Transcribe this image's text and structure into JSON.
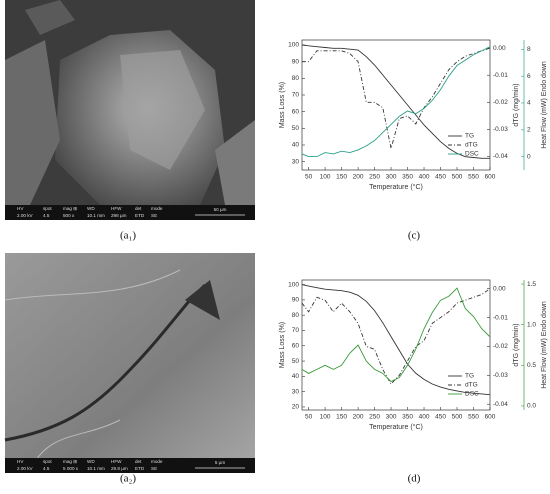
{
  "images": [
    {
      "label": "(a₁)",
      "info_headers": [
        "HV",
        "spot",
        "mag ⊞",
        "WD",
        "HFW",
        "det",
        "mode"
      ],
      "info_values": [
        "2.00 kV",
        "4.5",
        "500 x",
        "10.1 mm",
        "298 µm",
        "ETD",
        "SE"
      ],
      "scale": "50 µm"
    },
    {
      "label": "(a₂)",
      "info_headers": [
        "HV",
        "spot",
        "mag ⊞",
        "WD",
        "HFW",
        "det",
        "mode"
      ],
      "info_values": [
        "2.00 kV",
        "4.5",
        "5 000 x",
        "10.1 mm",
        "29.8 µm",
        "ETD",
        "SE"
      ],
      "scale": "5 µm"
    }
  ],
  "chart_data": [
    {
      "type": "line",
      "label": "(c)",
      "x_label": "Temperature (°C)",
      "y_label": "Mass Loss (%)",
      "y2_label": "dTG (mg/min)",
      "y3_label": "Heat Flow (mW) Endo down",
      "x": [
        30,
        50,
        75,
        100,
        125,
        150,
        175,
        200,
        225,
        250,
        275,
        300,
        325,
        350,
        375,
        400,
        425,
        450,
        475,
        500,
        525,
        550,
        575,
        600
      ],
      "xlim": [
        30,
        600
      ],
      "xticks": [
        50,
        100,
        150,
        200,
        250,
        300,
        350,
        400,
        450,
        500,
        550,
        600
      ],
      "ylim": [
        25,
        103
      ],
      "yticks": [
        30,
        40,
        50,
        60,
        70,
        80,
        90,
        100
      ],
      "y2lim": [
        -0.045,
        0.003
      ],
      "y2ticks": [
        {
          "value": 0,
          "label": "0.00"
        },
        -0.01,
        -0.02,
        -0.03,
        -0.04
      ],
      "y3lim": [
        -1,
        8.7
      ],
      "y3ticks": [
        0,
        2,
        4,
        6,
        8
      ],
      "y3color": "#2aa08a",
      "legend": "lower-right",
      "series": [
        {
          "name": "TG",
          "color": "#333333",
          "line_style": "solid",
          "axis": "y",
          "values": [
            100,
            99.5,
            99,
            98.5,
            98,
            98,
            97.5,
            97,
            93,
            88,
            82,
            76,
            70,
            64,
            58,
            52,
            47,
            42,
            38,
            35,
            33,
            32.5,
            32,
            32
          ]
        },
        {
          "name": "dTG",
          "color": "#333333",
          "line_style": "dashdot",
          "axis": "y2",
          "values": [
            -0.005,
            -0.005,
            -0.001,
            -0.001,
            -0.001,
            -0.001,
            -0.002,
            -0.005,
            -0.02,
            -0.02,
            -0.022,
            -0.037,
            -0.026,
            -0.025,
            -0.028,
            -0.022,
            -0.018,
            -0.013,
            -0.008,
            -0.005,
            -0.003,
            -0.002,
            -0.001,
            0
          ]
        },
        {
          "name": "DSC",
          "color": "#2aa08a",
          "line_style": "solid",
          "axis": "y3",
          "values": [
            0.2,
            0,
            0,
            0.3,
            0.2,
            0.4,
            0.3,
            0.5,
            0.8,
            1.2,
            1.8,
            2.4,
            3,
            3.4,
            3.2,
            3.6,
            4.2,
            5,
            6,
            6.8,
            7.2,
            7.6,
            7.9,
            8.2
          ]
        }
      ]
    },
    {
      "type": "line",
      "label": "(d)",
      "x_label": "Temperature (°C)",
      "y_label": "Mass Loss (%)",
      "y2_label": "dTG (mg/min)",
      "y3_label": "Heat Flow (mW) Endo down",
      "x": [
        30,
        50,
        75,
        100,
        125,
        150,
        175,
        200,
        225,
        250,
        275,
        300,
        325,
        350,
        375,
        400,
        425,
        450,
        475,
        500,
        525,
        550,
        575,
        600
      ],
      "xlim": [
        30,
        600
      ],
      "xticks": [
        50,
        100,
        150,
        200,
        250,
        300,
        350,
        400,
        450,
        500,
        550,
        600
      ],
      "ylim": [
        18,
        103
      ],
      "yticks": [
        20,
        30,
        40,
        50,
        60,
        70,
        80,
        90,
        100
      ],
      "y2lim": [
        -0.042,
        0.003
      ],
      "y2ticks": [
        {
          "value": 0,
          "label": "0.00"
        },
        -0.01,
        -0.02,
        -0.03,
        -0.04
      ],
      "y3lim": [
        -0.05,
        1.55
      ],
      "y3ticks": [
        {
          "value": 0,
          "label": "0.0"
        },
        0.5,
        {
          "value": 1,
          "label": "1.0"
        },
        1.5
      ],
      "y3color": "#3a9a3a",
      "legend": "lower-right",
      "series": [
        {
          "name": "TG",
          "color": "#333333",
          "line_style": "solid",
          "axis": "y",
          "values": [
            100,
            99,
            98,
            97,
            96.5,
            96,
            95,
            93,
            89,
            83,
            75,
            66,
            57,
            48,
            42,
            38,
            35,
            33,
            31.5,
            30.5,
            29.5,
            29,
            28.5,
            28
          ]
        },
        {
          "name": "dTG",
          "color": "#333333",
          "line_style": "dashdot",
          "axis": "y2",
          "values": [
            -0.005,
            -0.008,
            -0.003,
            -0.004,
            -0.008,
            -0.005,
            -0.008,
            -0.012,
            -0.02,
            -0.021,
            -0.028,
            -0.033,
            -0.03,
            -0.025,
            -0.02,
            -0.018,
            -0.012,
            -0.01,
            -0.008,
            -0.005,
            -0.004,
            -0.003,
            -0.002,
            0
          ]
        },
        {
          "name": "DSC",
          "color": "#3a9a3a",
          "line_style": "solid",
          "axis": "y3",
          "values": [
            0.45,
            0.4,
            0.45,
            0.5,
            0.45,
            0.5,
            0.65,
            0.75,
            0.55,
            0.45,
            0.4,
            0.3,
            0.35,
            0.5,
            0.7,
            0.95,
            1.15,
            1.3,
            1.35,
            1.45,
            1.2,
            1.1,
            0.95,
            0.85
          ]
        }
      ]
    }
  ]
}
